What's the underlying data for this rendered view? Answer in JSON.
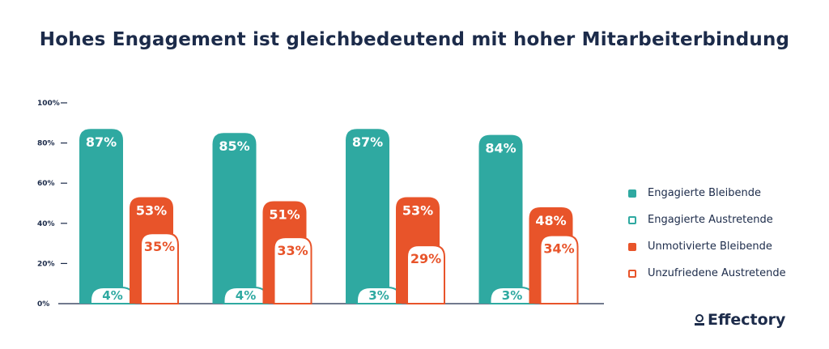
{
  "title": "Hohes Engagement ist gleichbedeutend mit hoher Mitarbeiterbindung",
  "logo_text": "Effectory",
  "colors": {
    "teal": "#2fa9a1",
    "orange": "#e8542a",
    "axis": "#1c2b4a",
    "white": "#ffffff"
  },
  "chart_data": {
    "type": "bar",
    "title": "Hohes Engagement ist gleichbedeutend mit hoher Mitarbeiterbindung",
    "categories": [
      "",
      "",
      "",
      ""
    ],
    "ylim": [
      0,
      100
    ],
    "yticks": [
      "0%",
      "20%",
      "40%",
      "60%",
      "80%",
      "100%"
    ],
    "grid": false,
    "legend_position": "right",
    "series": [
      {
        "name": "Engagierte Bleibende",
        "values": [
          87,
          85,
          87,
          84
        ],
        "labels": [
          "87%",
          "85%",
          "87%",
          "84%"
        ],
        "style": "filled",
        "color": "#2fa9a1"
      },
      {
        "name": "Engagierte Austretende",
        "values": [
          4,
          4,
          3,
          3
        ],
        "labels": [
          "4%",
          "4%",
          "3%",
          "3%"
        ],
        "style": "outline",
        "color": "#2fa9a1"
      },
      {
        "name": "Unmotivierte Bleibende",
        "values": [
          53,
          51,
          53,
          48
        ],
        "labels": [
          "53%",
          "51%",
          "53%",
          "48%"
        ],
        "style": "filled",
        "color": "#e8542a"
      },
      {
        "name": "Unzufriedene Austretende",
        "values": [
          35,
          33,
          29,
          34
        ],
        "labels": [
          "35%",
          "33%",
          "29%",
          "34%"
        ],
        "style": "outline",
        "color": "#e8542a"
      }
    ]
  }
}
